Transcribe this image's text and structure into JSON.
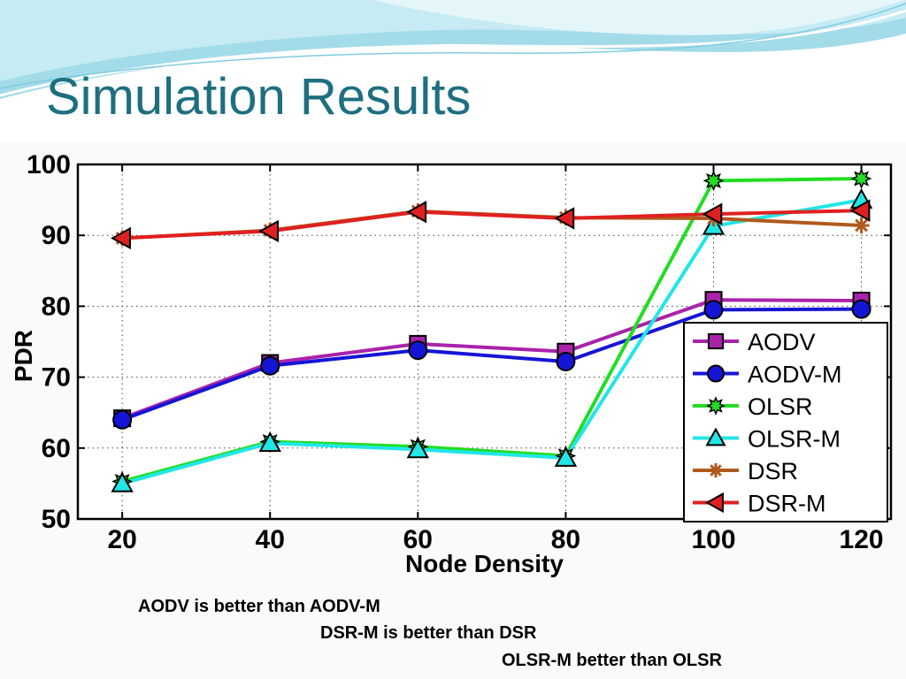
{
  "slide": {
    "title": "Simulation Results",
    "accent_color": "#1d6f80",
    "takeaways": [
      "AODV is better than AODV-M",
      "DSR-M is better than DSR",
      "OLSR-M better than OLSR"
    ]
  },
  "chart_data": {
    "type": "line",
    "title": "",
    "xlabel": "Node Density",
    "ylabel": "PDR",
    "x": [
      20,
      40,
      60,
      80,
      100,
      120
    ],
    "x_ticks": [
      "20",
      "40",
      "60",
      "80",
      "100",
      "120"
    ],
    "y_ticks": [
      "50",
      "60",
      "70",
      "80",
      "90",
      "100"
    ],
    "ylim": [
      50,
      100
    ],
    "grid": true,
    "legend_position": "bottom-right",
    "series": [
      {
        "name": "AODV",
        "color": "#aa22aa",
        "marker": "square",
        "values": [
          64.2,
          72.0,
          74.7,
          73.6,
          80.9,
          80.8
        ]
      },
      {
        "name": "AODV-M",
        "color": "#1515d6",
        "marker": "circle",
        "values": [
          64.0,
          71.6,
          73.8,
          72.2,
          79.5,
          79.6
        ]
      },
      {
        "name": "OLSR",
        "color": "#22dd22",
        "marker": "star",
        "values": [
          55.3,
          60.9,
          60.2,
          58.9,
          97.7,
          98.0
        ]
      },
      {
        "name": "OLSR-M",
        "color": "#22e6e6",
        "marker": "triangle-up",
        "values": [
          55.0,
          60.7,
          59.8,
          58.6,
          91.3,
          95.0
        ]
      },
      {
        "name": "DSR",
        "color": "#b05a1c",
        "marker": "asterisk",
        "values": [
          89.6,
          90.7,
          93.4,
          92.5,
          92.4,
          91.4
        ]
      },
      {
        "name": "DSR-M",
        "color": "#e02020",
        "marker": "triangle-left",
        "values": [
          89.6,
          90.6,
          93.3,
          92.4,
          93.0,
          93.5
        ]
      }
    ]
  }
}
